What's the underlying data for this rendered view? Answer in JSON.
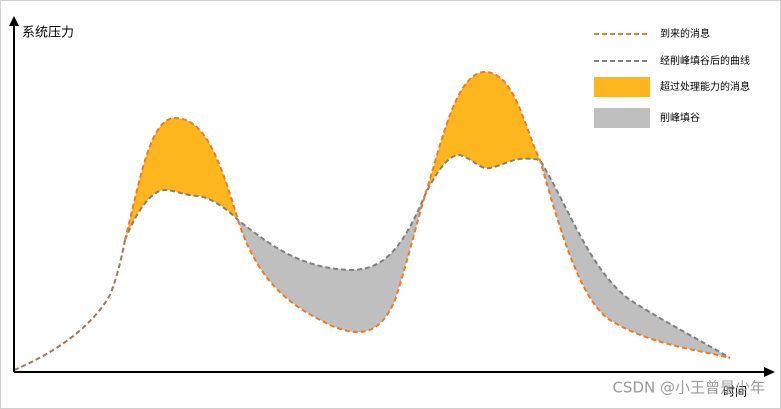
{
  "axes": {
    "y_label": "系统压力",
    "x_label": "时间"
  },
  "legend": [
    {
      "label": "到来的消息"
    },
    {
      "label": "经削峰填谷后的曲线"
    },
    {
      "label": "超过处理能力的消息"
    },
    {
      "label": "削峰填谷"
    }
  ],
  "watermark": "CSDN @小王曾是少年"
}
